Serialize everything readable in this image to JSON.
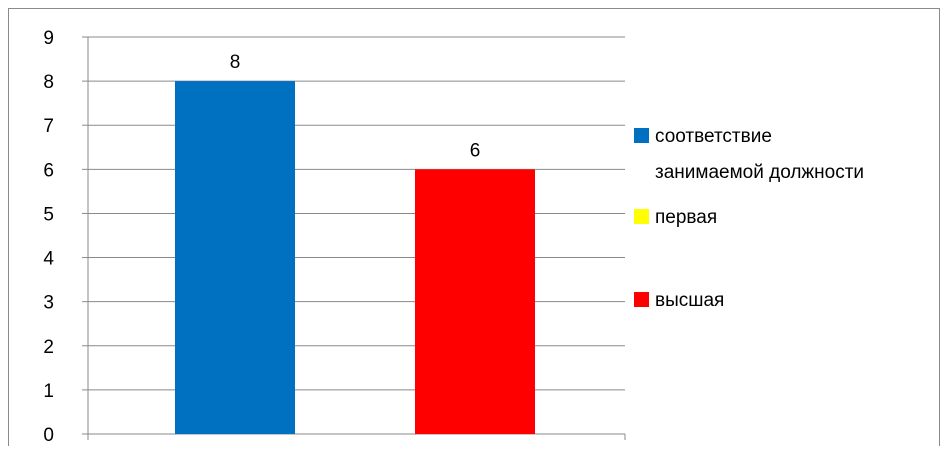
{
  "chart_data": {
    "type": "bar",
    "categories": [
      "соответствие занимаемой должности",
      "первая",
      "высшая"
    ],
    "values": [
      8,
      0,
      6
    ],
    "data_labels": [
      "8",
      "",
      "6"
    ],
    "series_colors": [
      "#0070c0",
      "#ffff00",
      "#ff0000"
    ],
    "ylim": [
      0,
      9
    ],
    "yticks": [
      "0",
      "1",
      "2",
      "3",
      "4",
      "5",
      "6",
      "7",
      "8",
      "9"
    ],
    "grid": true,
    "legend_position": "right",
    "legend": [
      {
        "lines": [
          "соответствие",
          "занимаемой должности"
        ],
        "color": "#0070c0"
      },
      {
        "lines": [
          "первая"
        ],
        "color": "#ffff00"
      },
      {
        "lines": [
          "высшая"
        ],
        "color": "#ff0000"
      }
    ],
    "title": "",
    "xlabel": "",
    "ylabel": ""
  }
}
